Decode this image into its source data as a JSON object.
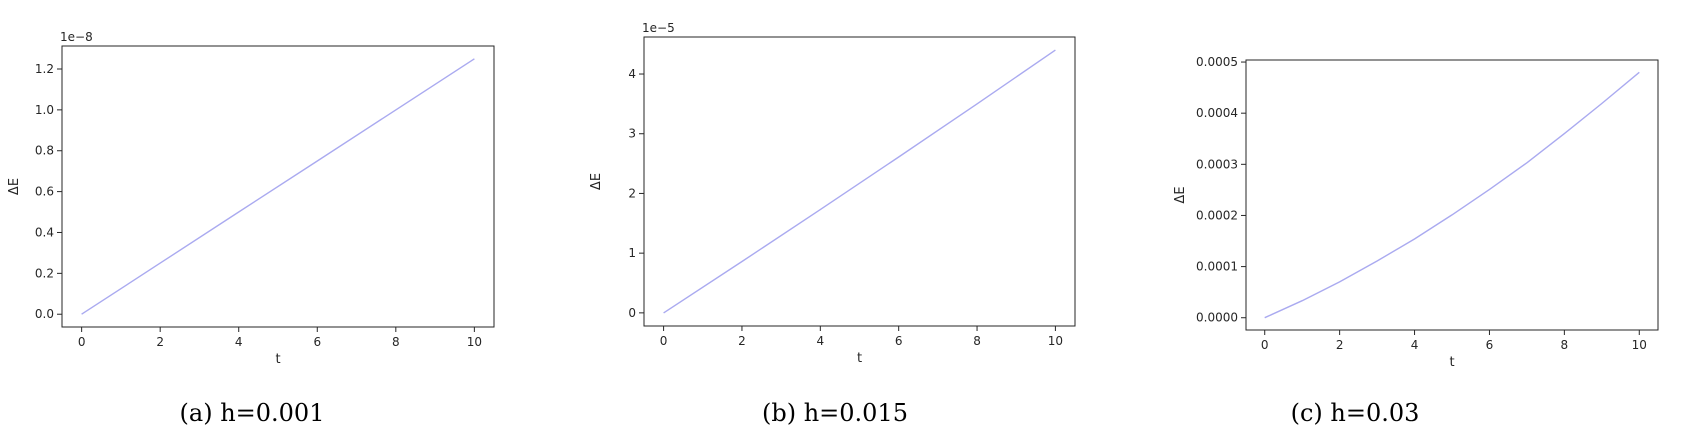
{
  "colors": {
    "line": "#aaaaf0",
    "axes": "#262626",
    "background": "#ffffff"
  },
  "chart_data": [
    {
      "type": "line",
      "caption": "(a) h=0.001",
      "xlabel": "t",
      "ylabel": "ΔE",
      "offset_label": "1e−8",
      "xlim": [
        -0.5,
        10.5
      ],
      "ylim": [
        -0.0625,
        1.3125
      ],
      "xticks": [
        0,
        2,
        4,
        6,
        8,
        10
      ],
      "xtick_labels": [
        "0",
        "2",
        "4",
        "6",
        "8",
        "10"
      ],
      "yticks": [
        0.0,
        0.2,
        0.4,
        0.6,
        0.8,
        1.0,
        1.2
      ],
      "ytick_labels": [
        "0.0",
        "0.2",
        "0.4",
        "0.6",
        "0.8",
        "1.0",
        "1.2"
      ],
      "grid": false,
      "series": [
        {
          "x": [
            0,
            2,
            4,
            6,
            8,
            10
          ],
          "values": [
            0,
            0.25,
            0.5,
            0.75,
            1.0,
            1.25
          ]
        }
      ]
    },
    {
      "type": "line",
      "caption": "(b) h=0.015",
      "xlabel": "t",
      "ylabel": "ΔE",
      "offset_label": "1e−5",
      "xlim": [
        -0.5,
        10.5
      ],
      "ylim": [
        -0.22,
        4.62
      ],
      "xticks": [
        0,
        2,
        4,
        6,
        8,
        10
      ],
      "xtick_labels": [
        "0",
        "2",
        "4",
        "6",
        "8",
        "10"
      ],
      "yticks": [
        0,
        1,
        2,
        3,
        4
      ],
      "ytick_labels": [
        "0",
        "1",
        "2",
        "3",
        "4"
      ],
      "grid": false,
      "series": [
        {
          "x": [
            0,
            2,
            4,
            6,
            8,
            10
          ],
          "values": [
            0,
            0.86,
            1.73,
            2.61,
            3.5,
            4.4
          ]
        }
      ]
    },
    {
      "type": "line",
      "caption": "(c) h=0.03",
      "xlabel": "t",
      "ylabel": "ΔE",
      "offset_label": "",
      "xlim": [
        -0.5,
        10.5
      ],
      "ylim": [
        -2.4e-05,
        0.000504
      ],
      "xticks": [
        0,
        2,
        4,
        6,
        8,
        10
      ],
      "xtick_labels": [
        "0",
        "2",
        "4",
        "6",
        "8",
        "10"
      ],
      "yticks": [
        0.0,
        0.0001,
        0.0002,
        0.0003,
        0.0004,
        0.0005
      ],
      "ytick_labels": [
        "0.0000",
        "0.0001",
        "0.0002",
        "0.0003",
        "0.0004",
        "0.0005"
      ],
      "grid": false,
      "series": [
        {
          "x": [
            0,
            1,
            2,
            3,
            4,
            5,
            6,
            7,
            8,
            9,
            10
          ],
          "values": [
            0,
            3.33e-05,
            7e-05,
            0.000111,
            0.000154,
            0.000201,
            0.000251,
            0.000303,
            0.00036,
            0.000419,
            0.00048
          ]
        }
      ]
    }
  ]
}
